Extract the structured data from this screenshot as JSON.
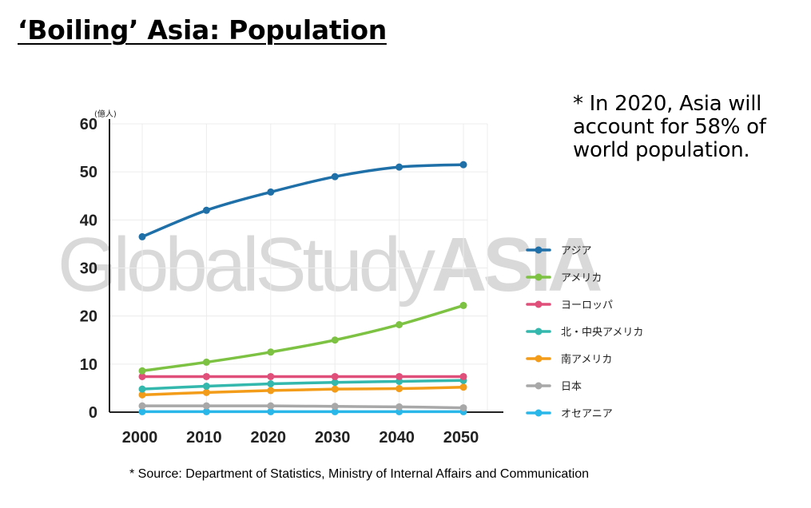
{
  "title": "‘Boiling’ Asia: Population",
  "note": "* In 2020, Asia will account for 58% of world population.",
  "source": "*   Source:  Department of Statistics, Ministry of Internal Affairs and Communication",
  "watermark": {
    "light": "GlobalStudy",
    "bold": "ASIA"
  },
  "chart_data": {
    "type": "line",
    "title": "",
    "xlabel": "",
    "ylabel": "(億人)",
    "x": [
      2000,
      2010,
      2020,
      2030,
      2040,
      2050
    ],
    "ylim": [
      0,
      60
    ],
    "yticks": [
      0,
      10,
      20,
      30,
      40,
      50,
      60
    ],
    "grid": true,
    "legend_position": "right",
    "series": [
      {
        "name": "アジア",
        "color": "#1f6fa8",
        "values": [
          36.5,
          42.0,
          45.8,
          49.0,
          51.0,
          51.5
        ]
      },
      {
        "name": "アメリカ",
        "color": "#7dc242",
        "values": [
          8.6,
          10.4,
          12.5,
          15.0,
          18.2,
          22.2
        ]
      },
      {
        "name": "ヨーロッパ",
        "color": "#e04f7a",
        "values": [
          7.4,
          7.4,
          7.4,
          7.4,
          7.4,
          7.4
        ]
      },
      {
        "name": "北・中央アメリカ",
        "color": "#34b8ad",
        "values": [
          4.8,
          5.4,
          5.9,
          6.2,
          6.4,
          6.6
        ]
      },
      {
        "name": "南アメリカ",
        "color": "#f39c19",
        "values": [
          3.6,
          4.1,
          4.5,
          4.8,
          4.9,
          5.2
        ]
      },
      {
        "name": "日本",
        "color": "#a8a8a8",
        "values": [
          1.3,
          1.3,
          1.3,
          1.2,
          1.1,
          0.9
        ]
      },
      {
        "name": "オセアニア",
        "color": "#29b6e8",
        "values": [
          0.1,
          0.1,
          0.1,
          0.1,
          0.1,
          0.1
        ]
      }
    ]
  }
}
